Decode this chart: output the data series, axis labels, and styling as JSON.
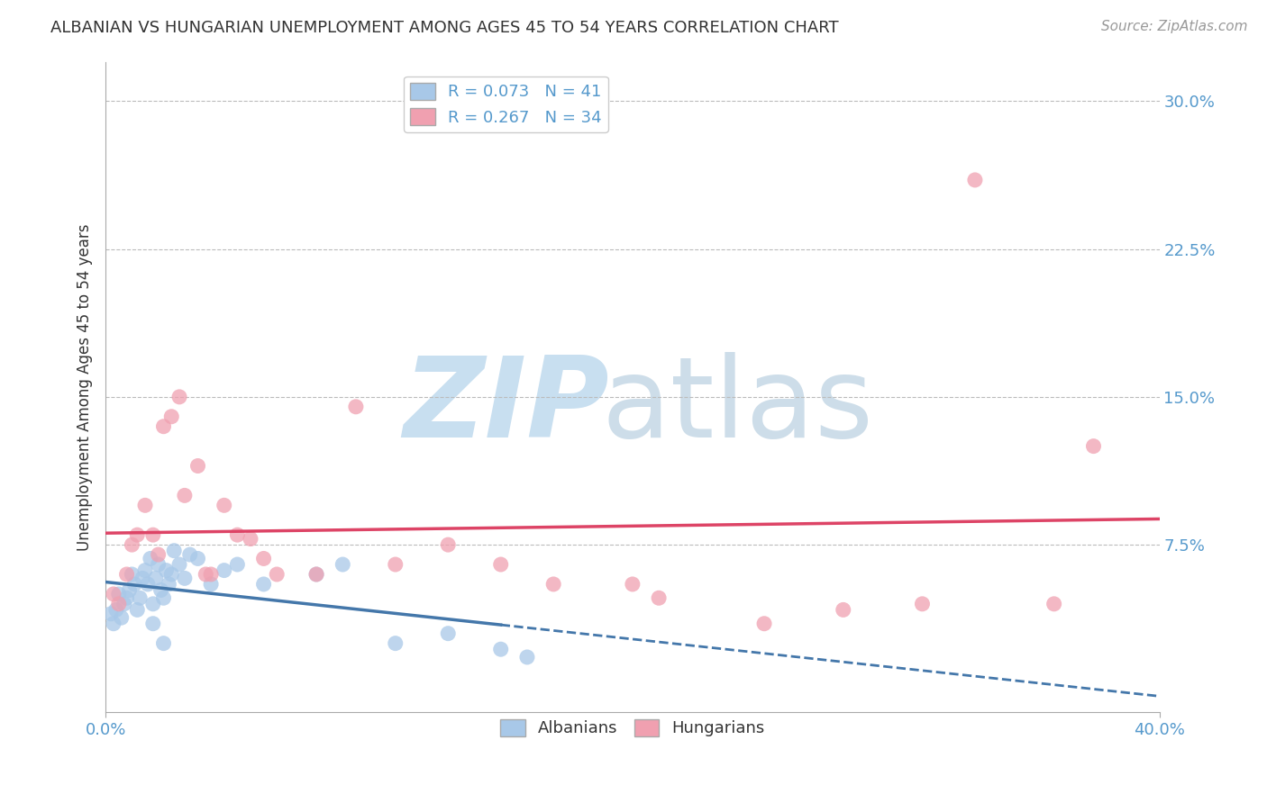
{
  "title": "ALBANIAN VS HUNGARIAN UNEMPLOYMENT AMONG AGES 45 TO 54 YEARS CORRELATION CHART",
  "source_text": "Source: ZipAtlas.com",
  "ylabel": "Unemployment Among Ages 45 to 54 years",
  "xlim": [
    0.0,
    0.4
  ],
  "ylim": [
    -0.01,
    0.32
  ],
  "yticks": [
    0.075,
    0.15,
    0.225,
    0.3
  ],
  "ytick_labels": [
    "7.5%",
    "15.0%",
    "22.5%",
    "30.0%"
  ],
  "xticks": [
    0.0,
    0.4
  ],
  "xtick_labels": [
    "0.0%",
    "40.0%"
  ],
  "albanians": {
    "x": [
      0.002,
      0.003,
      0.004,
      0.005,
      0.006,
      0.007,
      0.008,
      0.009,
      0.01,
      0.011,
      0.012,
      0.013,
      0.014,
      0.015,
      0.016,
      0.017,
      0.018,
      0.019,
      0.02,
      0.021,
      0.022,
      0.023,
      0.024,
      0.025,
      0.026,
      0.028,
      0.03,
      0.032,
      0.035,
      0.04,
      0.045,
      0.05,
      0.06,
      0.08,
      0.09,
      0.11,
      0.13,
      0.15,
      0.16,
      0.018,
      0.022
    ],
    "y": [
      0.04,
      0.035,
      0.042,
      0.05,
      0.038,
      0.045,
      0.048,
      0.052,
      0.06,
      0.055,
      0.042,
      0.048,
      0.058,
      0.062,
      0.055,
      0.068,
      0.045,
      0.058,
      0.065,
      0.052,
      0.048,
      0.062,
      0.055,
      0.06,
      0.072,
      0.065,
      0.058,
      0.07,
      0.068,
      0.055,
      0.062,
      0.065,
      0.055,
      0.06,
      0.065,
      0.025,
      0.03,
      0.022,
      0.018,
      0.035,
      0.025
    ],
    "R": 0.073,
    "N": 41,
    "color": "#a8c8e8",
    "line_color": "#4477aa",
    "line_style_solid": "-",
    "line_style_dashed": "--",
    "line_solid_end": 0.15
  },
  "hungarians": {
    "x": [
      0.003,
      0.005,
      0.008,
      0.01,
      0.012,
      0.015,
      0.018,
      0.02,
      0.022,
      0.025,
      0.028,
      0.03,
      0.035,
      0.038,
      0.04,
      0.045,
      0.05,
      0.055,
      0.06,
      0.065,
      0.08,
      0.095,
      0.11,
      0.13,
      0.15,
      0.17,
      0.2,
      0.21,
      0.25,
      0.28,
      0.31,
      0.33,
      0.36,
      0.375
    ],
    "y": [
      0.05,
      0.045,
      0.06,
      0.075,
      0.08,
      0.095,
      0.08,
      0.07,
      0.135,
      0.14,
      0.15,
      0.1,
      0.115,
      0.06,
      0.06,
      0.095,
      0.08,
      0.078,
      0.068,
      0.06,
      0.06,
      0.145,
      0.065,
      0.075,
      0.065,
      0.055,
      0.055,
      0.048,
      0.035,
      0.042,
      0.045,
      0.26,
      0.045,
      0.125
    ],
    "R": 0.267,
    "N": 34,
    "color": "#f0a0b0",
    "line_color": "#dd4466",
    "line_style": "-"
  },
  "background_color": "#ffffff",
  "grid_color": "#bbbbbb",
  "title_color": "#333333",
  "source_color": "#999999",
  "tick_color": "#5599cc",
  "watermark_zip_color": "#c8dff0",
  "watermark_atlas_color": "#b8cfe0"
}
